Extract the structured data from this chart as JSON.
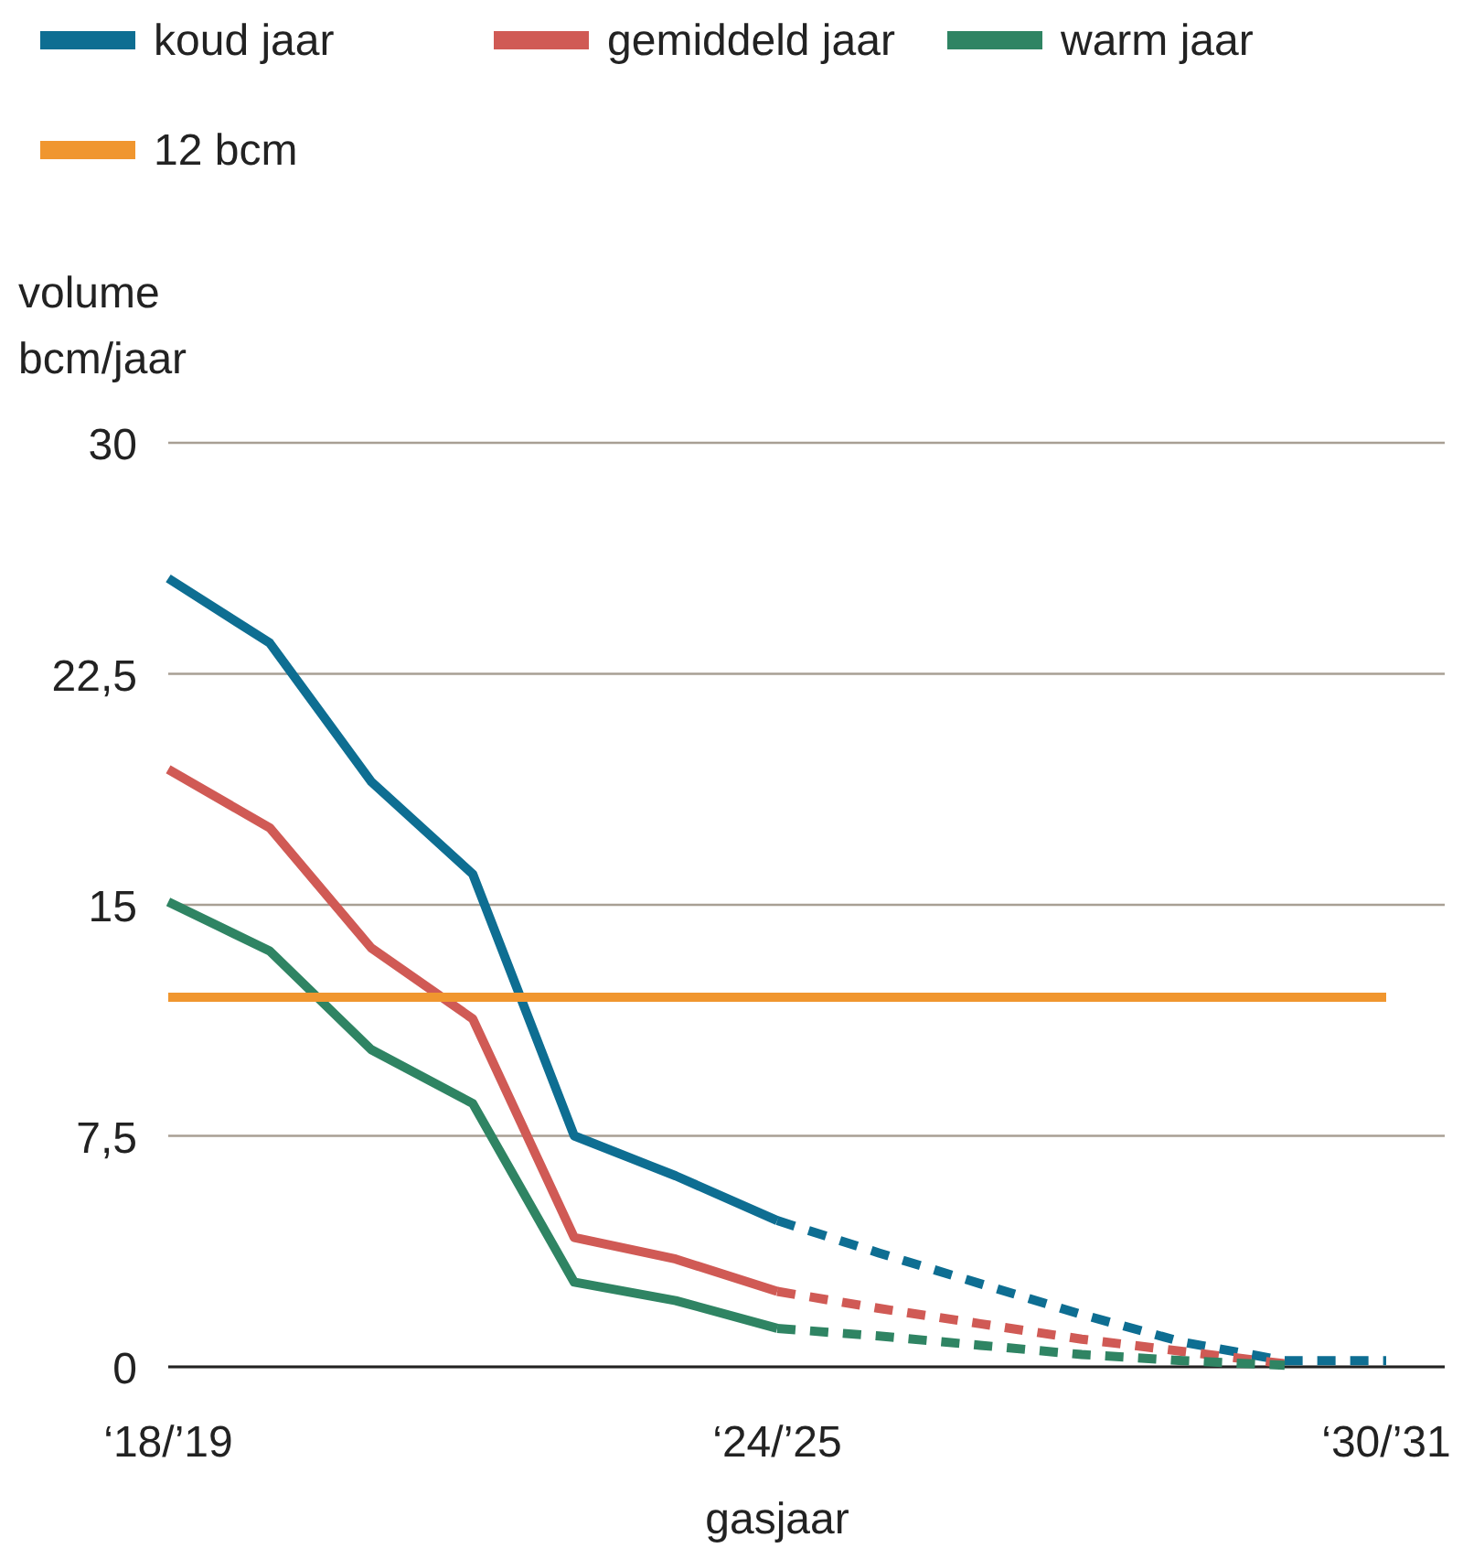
{
  "chart_data": {
    "type": "line",
    "xlabel": "gasjaar",
    "ylabel": "volume\nbcm/jaar",
    "categories": [
      "‘18/’19",
      null,
      null,
      null,
      null,
      null,
      "‘24/’25",
      null,
      null,
      null,
      null,
      null,
      "‘30/’31"
    ],
    "ylim": [
      0,
      30
    ],
    "yticks": [
      {
        "value": 0,
        "label": "0"
      },
      {
        "value": 7.5,
        "label": "7,5"
      },
      {
        "value": 15,
        "label": "15"
      },
      {
        "value": 22.5,
        "label": "22,5"
      },
      {
        "value": 30,
        "label": "30"
      }
    ],
    "grid": "y",
    "legend": "top",
    "marker": "none",
    "series": [
      {
        "name": "koud jaar",
        "color": "#0e6e92",
        "line_style": "solid",
        "values": [
          25.6,
          23.5,
          19.0,
          16.0,
          7.5,
          6.2,
          4.75,
          null,
          null,
          null,
          null,
          null,
          null
        ]
      },
      {
        "name": "gemiddeld jaar",
        "color": "#d05a55",
        "line_style": "solid",
        "values": [
          19.4,
          17.5,
          13.6,
          11.3,
          4.2,
          3.5,
          2.45,
          null,
          null,
          null,
          null,
          null,
          null
        ]
      },
      {
        "name": "warm jaar",
        "color": "#2f8463",
        "line_style": "solid",
        "values": [
          15.1,
          13.5,
          10.3,
          8.55,
          2.75,
          2.15,
          1.25,
          null,
          null,
          null,
          null,
          null,
          null
        ]
      },
      {
        "name": "12 bcm",
        "color": "#f0962f",
        "line_style": "solid",
        "values": [
          12,
          12,
          12,
          12,
          12,
          12,
          12,
          12,
          12,
          12,
          12,
          12,
          12
        ]
      },
      {
        "color": "#0e6e92",
        "line_style": "dashed",
        "values": [
          null,
          null,
          null,
          null,
          null,
          null,
          4.75,
          3.7,
          2.7,
          1.7,
          0.8,
          0.2,
          0.2
        ]
      },
      {
        "color": "#d05a55",
        "line_style": "dashed",
        "values": [
          null,
          null,
          null,
          null,
          null,
          null,
          2.45,
          1.9,
          1.4,
          0.9,
          0.5,
          0.1,
          null
        ]
      },
      {
        "color": "#2f8463",
        "line_style": "dashed",
        "values": [
          null,
          null,
          null,
          null,
          null,
          null,
          1.25,
          1.0,
          0.7,
          0.4,
          0.2,
          0.05,
          null
        ]
      }
    ]
  }
}
